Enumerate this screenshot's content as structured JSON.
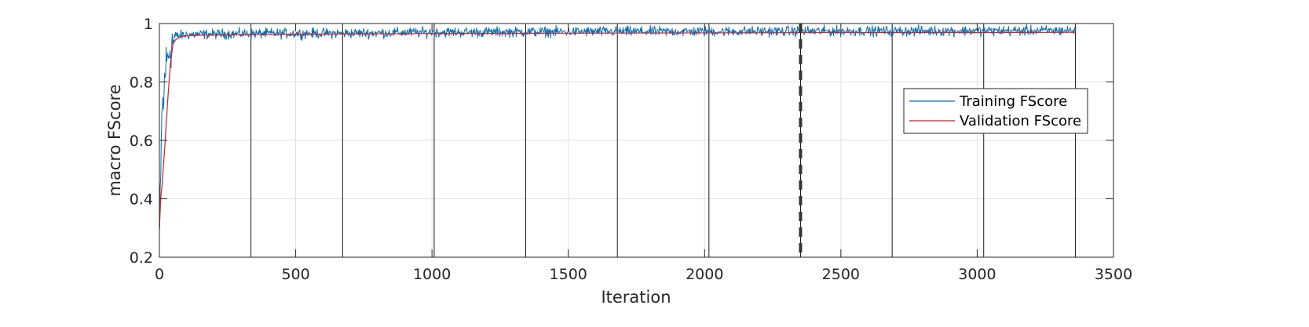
{
  "chart_data": {
    "type": "line",
    "title": "",
    "xlabel": "Iteration",
    "ylabel": "macro FScore",
    "xlim": [
      0,
      3500
    ],
    "ylim": [
      0.2,
      1
    ],
    "xticks": [
      0,
      500,
      1000,
      1500,
      2000,
      2500,
      3000,
      3500
    ],
    "yticks": [
      0.2,
      0.4,
      0.6,
      0.8,
      1
    ],
    "xtick_labels": [
      "0",
      "500",
      "1000",
      "1500",
      "2000",
      "2500",
      "3000",
      "3500"
    ],
    "ytick_labels": [
      "0.2",
      "0.4",
      "0.6",
      "0.8",
      "1"
    ],
    "grid": true,
    "legend_position": "right",
    "epoch_boundaries": [
      336,
      672,
      1008,
      1344,
      1680,
      2016,
      2352,
      2688,
      3024,
      3360
    ],
    "best_iteration": 2352,
    "series": [
      {
        "name": "Training FScore",
        "color": "#0072BD",
        "noise": 0.012,
        "x": [
          1,
          5,
          10,
          15,
          20,
          30,
          40,
          50,
          60,
          80,
          100,
          150,
          200,
          300,
          400,
          500,
          700,
          1000,
          1500,
          2000,
          2500,
          3000,
          3360
        ],
        "y": [
          0.29,
          0.45,
          0.75,
          0.7,
          0.84,
          0.88,
          0.92,
          0.94,
          0.955,
          0.96,
          0.962,
          0.963,
          0.964,
          0.965,
          0.966,
          0.966,
          0.967,
          0.97,
          0.972,
          0.973,
          0.974,
          0.975,
          0.976
        ]
      },
      {
        "name": "Validation FScore",
        "color": "#E8181E",
        "x": [
          0,
          5,
          10,
          20,
          30,
          40,
          50,
          60,
          80,
          100,
          150,
          200,
          300,
          500,
          1000,
          1500,
          2000,
          2500,
          3000,
          3360
        ],
        "y": [
          0.3,
          0.4,
          0.45,
          0.58,
          0.73,
          0.86,
          0.93,
          0.945,
          0.955,
          0.958,
          0.96,
          0.961,
          0.962,
          0.963,
          0.966,
          0.967,
          0.968,
          0.969,
          0.969,
          0.97
        ]
      }
    ]
  }
}
